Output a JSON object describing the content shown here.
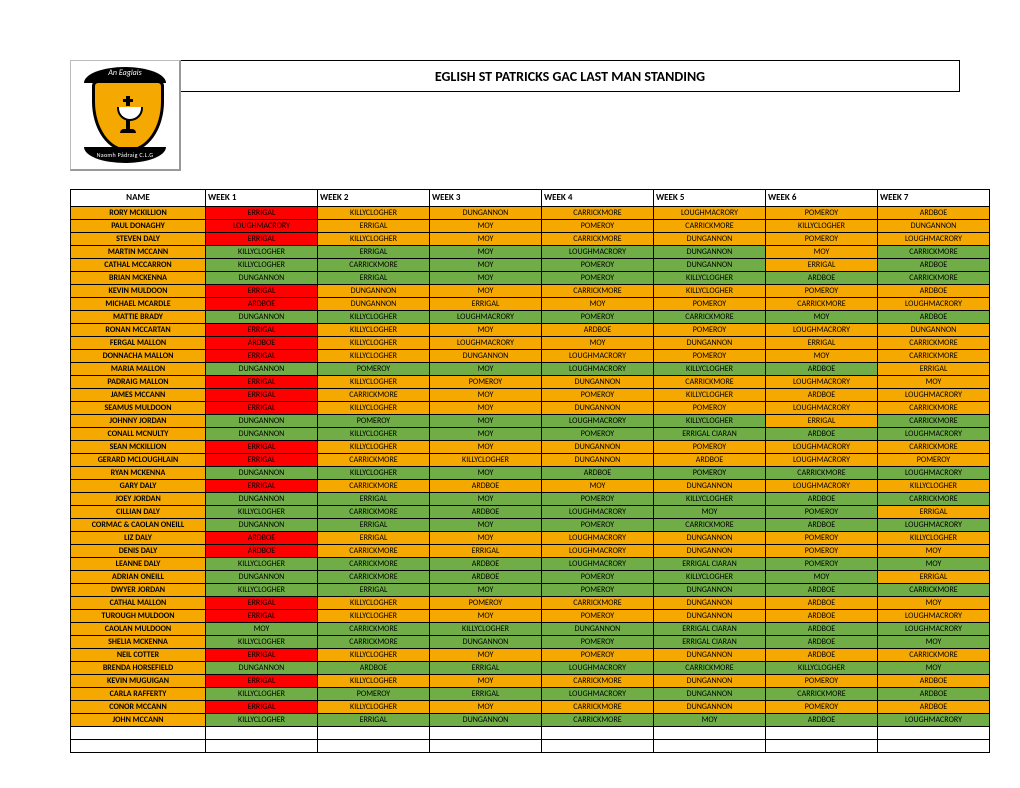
{
  "title": "EGLISH ST PATRICKS GAC LAST MAN STANDING",
  "crest_top": "An Eaglais",
  "crest_bottom": "Naomh Pádraig C.L.G",
  "columns": [
    "NAME",
    "WEEK 1",
    "WEEK 2",
    "WEEK 3",
    "WEEK 4",
    "WEEK 5",
    "WEEK 6",
    "WEEK 7"
  ],
  "colors": {
    "green": "#70ad47",
    "orange": "#f5a800",
    "red": "#ff0000"
  },
  "rows": [
    {
      "name": "RORY MCKILLION",
      "cells": [
        [
          "ERRIGAL",
          "r"
        ],
        [
          "KILLYCLOGHER",
          "o"
        ],
        [
          "DUNGANNON",
          "o"
        ],
        [
          "CARRICKMORE",
          "o"
        ],
        [
          "LOUGHMACRORY",
          "o"
        ],
        [
          "POMEROY",
          "o"
        ],
        [
          "ARDBOE",
          "o"
        ]
      ]
    },
    {
      "name": "PAUL DONAGHY",
      "cells": [
        [
          "LOUGHMACRORY",
          "r"
        ],
        [
          "ERRIGAL",
          "o"
        ],
        [
          "MOY",
          "o"
        ],
        [
          "POMEROY",
          "o"
        ],
        [
          "CARRICKMORE",
          "o"
        ],
        [
          "KILLYCLOGHER",
          "o"
        ],
        [
          "DUNGANNON",
          "o"
        ]
      ]
    },
    {
      "name": "STEVEN DALY",
      "cells": [
        [
          "ERRIGAL",
          "r"
        ],
        [
          "KILLYCLOGHER",
          "o"
        ],
        [
          "MOY",
          "o"
        ],
        [
          "CARRICKMORE",
          "o"
        ],
        [
          "DUNGANNON",
          "o"
        ],
        [
          "POMEROY",
          "o"
        ],
        [
          "LOUGHMACRORY",
          "o"
        ]
      ]
    },
    {
      "name": "MARTIN MCCANN",
      "cells": [
        [
          "KILLYCLOGHER",
          "g"
        ],
        [
          "ERRIGAL",
          "g"
        ],
        [
          "MOY",
          "g"
        ],
        [
          "LOUGHMACRORY",
          "g"
        ],
        [
          "DUNGANNON",
          "g"
        ],
        [
          "MOY",
          "o"
        ],
        [
          "CARRICKMORE",
          "g"
        ]
      ]
    },
    {
      "name": "CATHAL MCCARRON",
      "cells": [
        [
          "KILLYCLOGHER",
          "g"
        ],
        [
          "CARRICKMORE",
          "g"
        ],
        [
          "MOY",
          "g"
        ],
        [
          "POMEROY",
          "g"
        ],
        [
          "DUNGANNON",
          "g"
        ],
        [
          "ERRIGAL",
          "o"
        ],
        [
          "ARDBOE",
          "g"
        ]
      ]
    },
    {
      "name": "BRIAN MCKENNA",
      "cells": [
        [
          "DUNGANNON",
          "g"
        ],
        [
          "ERRIGAL",
          "g"
        ],
        [
          "MOY",
          "g"
        ],
        [
          "POMEROY",
          "g"
        ],
        [
          "KILLYCLOGHER",
          "g"
        ],
        [
          "ARDBOE",
          "g"
        ],
        [
          "CARRICKMORE",
          "g"
        ]
      ]
    },
    {
      "name": "KEVIN MULDOON",
      "cells": [
        [
          "ERRIGAL",
          "r"
        ],
        [
          "DUNGANNON",
          "o"
        ],
        [
          "MOY",
          "o"
        ],
        [
          "CARRICKMORE",
          "o"
        ],
        [
          "KILLYCLOGHER",
          "o"
        ],
        [
          "POMEROY",
          "o"
        ],
        [
          "ARDBOE",
          "o"
        ]
      ]
    },
    {
      "name": "MICHAEL MCARDLE",
      "cells": [
        [
          "ARDBOE",
          "r"
        ],
        [
          "DUNGANNON",
          "o"
        ],
        [
          "ERRIGAL",
          "o"
        ],
        [
          "MOY",
          "o"
        ],
        [
          "POMEROY",
          "o"
        ],
        [
          "CARRICKMORE",
          "o"
        ],
        [
          "LOUGHMACRORY",
          "o"
        ]
      ]
    },
    {
      "name": "MATTIE BRADY",
      "cells": [
        [
          "DUNGANNON",
          "g"
        ],
        [
          "KILLYCLOGHER",
          "g"
        ],
        [
          "LOUGHMACRORY",
          "g"
        ],
        [
          "POMEROY",
          "g"
        ],
        [
          "CARRICKMORE",
          "g"
        ],
        [
          "MOY",
          "g"
        ],
        [
          "ARDBOE",
          "g"
        ]
      ]
    },
    {
      "name": "RONAN MCCARTAN",
      "cells": [
        [
          "ERRIGAL",
          "r"
        ],
        [
          "KILLYCLOGHER",
          "o"
        ],
        [
          "MOY",
          "o"
        ],
        [
          "ARDBOE",
          "o"
        ],
        [
          "POMEROY",
          "o"
        ],
        [
          "LOUGHMACRORY",
          "o"
        ],
        [
          "DUNGANNON",
          "o"
        ]
      ]
    },
    {
      "name": "FERGAL MALLON",
      "cells": [
        [
          "ARDBOE",
          "r"
        ],
        [
          "KILLYCLOGHER",
          "o"
        ],
        [
          "LOUGHMACRORY",
          "o"
        ],
        [
          "MOY",
          "o"
        ],
        [
          "DUNGANNON",
          "o"
        ],
        [
          "ERRIGAL",
          "o"
        ],
        [
          "CARRICKMORE",
          "o"
        ]
      ]
    },
    {
      "name": "DONNACHA MALLON",
      "cells": [
        [
          "ERRIGAL",
          "r"
        ],
        [
          "KILLYCLOGHER",
          "o"
        ],
        [
          "DUNGANNON",
          "o"
        ],
        [
          "LOUGHMACRORY",
          "o"
        ],
        [
          "POMEROY",
          "o"
        ],
        [
          "MOY",
          "o"
        ],
        [
          "CARRICKMORE",
          "o"
        ]
      ]
    },
    {
      "name": "MARIA MALLON",
      "cells": [
        [
          "DUNGANNON",
          "g"
        ],
        [
          "POMEROY",
          "g"
        ],
        [
          "MOY",
          "g"
        ],
        [
          "LOUGHMACRORY",
          "g"
        ],
        [
          "KILLYCLOGHER",
          "g"
        ],
        [
          "ARDBOE",
          "g"
        ],
        [
          "ERRIGAL",
          "o"
        ]
      ]
    },
    {
      "name": "PADRAIG MALLON",
      "cells": [
        [
          "ERRIGAL",
          "r"
        ],
        [
          "KILLYCLOGHER",
          "o"
        ],
        [
          "POMEROY",
          "o"
        ],
        [
          "DUNGANNON",
          "o"
        ],
        [
          "CARRICKMORE",
          "o"
        ],
        [
          "LOUGHMACRORY",
          "o"
        ],
        [
          "MOY",
          "o"
        ]
      ]
    },
    {
      "name": "JAMES MCCANN",
      "cells": [
        [
          "ERRIGAL",
          "r"
        ],
        [
          "CARRICKMORE",
          "o"
        ],
        [
          "MOY",
          "o"
        ],
        [
          "POMEROY",
          "o"
        ],
        [
          "KILLYCLOGHER",
          "o"
        ],
        [
          "ARDBOE",
          "o"
        ],
        [
          "LOUGHMACRORY",
          "o"
        ]
      ]
    },
    {
      "name": "SEAMUS MULDOON",
      "cells": [
        [
          "ERRIGAL",
          "r"
        ],
        [
          "KILLYCLOGHER",
          "o"
        ],
        [
          "MOY",
          "o"
        ],
        [
          "DUNGANNON",
          "o"
        ],
        [
          "POMEROY",
          "o"
        ],
        [
          "LOUGHMACRORY",
          "o"
        ],
        [
          "CARRICKMORE",
          "o"
        ]
      ]
    },
    {
      "name": "JOHNNY JORDAN",
      "cells": [
        [
          "DUNGANNON",
          "g"
        ],
        [
          "POMEROY",
          "g"
        ],
        [
          "MOY",
          "g"
        ],
        [
          "LOUGHMACRORY",
          "g"
        ],
        [
          "KILLYCLOGHER",
          "g"
        ],
        [
          "ERRIGAL",
          "o"
        ],
        [
          "CARRICKMORE",
          "g"
        ]
      ]
    },
    {
      "name": "CONALL MCNULTY",
      "cells": [
        [
          "DUNGANNON",
          "g"
        ],
        [
          "KILLYCLOGHER",
          "g"
        ],
        [
          "MOY",
          "g"
        ],
        [
          "POMEROY",
          "g"
        ],
        [
          "ERRIGAL CIARAN",
          "g"
        ],
        [
          "ARDBOE",
          "g"
        ],
        [
          "LOUGHMACRORY",
          "g"
        ]
      ]
    },
    {
      "name": "SEAN MCKILLION",
      "cells": [
        [
          "ERRIGAL",
          "r"
        ],
        [
          "KILLYCLOGHER",
          "o"
        ],
        [
          "MOY",
          "o"
        ],
        [
          "DUNGANNON",
          "o"
        ],
        [
          "POMEROY",
          "o"
        ],
        [
          "LOUGHMACRORY",
          "o"
        ],
        [
          "CARRICKMORE",
          "o"
        ]
      ]
    },
    {
      "name": "GERARD MCLOUGHLAIN",
      "cells": [
        [
          "ERRIGAL",
          "r"
        ],
        [
          "CARRICKMORE",
          "o"
        ],
        [
          "KILLYCLOGHER",
          "o"
        ],
        [
          "DUNGANNON",
          "o"
        ],
        [
          "ARDBOE",
          "o"
        ],
        [
          "LOUGHMACRORY",
          "o"
        ],
        [
          "POMEROY",
          "o"
        ]
      ]
    },
    {
      "name": "RYAN MCKENNA",
      "cells": [
        [
          "DUNGANNON",
          "g"
        ],
        [
          "KILLYCLOGHER",
          "g"
        ],
        [
          "MOY",
          "g"
        ],
        [
          "ARDBOE",
          "g"
        ],
        [
          "POMEROY",
          "g"
        ],
        [
          "CARRICKMORE",
          "g"
        ],
        [
          "LOUGHMACRORY",
          "g"
        ]
      ]
    },
    {
      "name": "GARY DALY",
      "cells": [
        [
          "ERRIGAL",
          "r"
        ],
        [
          "CARRICKMORE",
          "o"
        ],
        [
          "ARDBOE",
          "o"
        ],
        [
          "MOY",
          "o"
        ],
        [
          "DUNGANNON",
          "o"
        ],
        [
          "LOUGHMACRORY",
          "o"
        ],
        [
          "KILLYCLOGHER",
          "o"
        ]
      ]
    },
    {
      "name": "JOEY JORDAN",
      "cells": [
        [
          "DUNGANNON",
          "g"
        ],
        [
          "ERRIGAL",
          "g"
        ],
        [
          "MOY",
          "g"
        ],
        [
          "POMEROY",
          "g"
        ],
        [
          "KILLYCLOGHER",
          "g"
        ],
        [
          "ARDBOE",
          "g"
        ],
        [
          "CARRICKMORE",
          "g"
        ]
      ]
    },
    {
      "name": "CILLIAN DALY",
      "cells": [
        [
          "KILLYCLOGHER",
          "g"
        ],
        [
          "CARRICKMORE",
          "g"
        ],
        [
          "ARDBOE",
          "g"
        ],
        [
          "LOUGHMACRORY",
          "g"
        ],
        [
          "MOY",
          "g"
        ],
        [
          "POMEROY",
          "g"
        ],
        [
          "ERRIGAL",
          "o"
        ]
      ]
    },
    {
      "name": "CORMAC & CAOLAN ONEILL",
      "cells": [
        [
          "DUNGANNON",
          "g"
        ],
        [
          "ERRIGAL",
          "g"
        ],
        [
          "MOY",
          "g"
        ],
        [
          "POMEROY",
          "g"
        ],
        [
          "CARRICKMORE",
          "g"
        ],
        [
          "ARDBOE",
          "g"
        ],
        [
          "LOUGHMACRORY",
          "g"
        ]
      ]
    },
    {
      "name": "LIZ DALY",
      "cells": [
        [
          "ARDBOE",
          "r"
        ],
        [
          "ERRIGAL",
          "o"
        ],
        [
          "MOY",
          "o"
        ],
        [
          "LOUGHMACRORY",
          "o"
        ],
        [
          "DUNGANNON",
          "o"
        ],
        [
          "POMEROY",
          "o"
        ],
        [
          "KILLYCLOGHER",
          "o"
        ]
      ]
    },
    {
      "name": "DENIS DALY",
      "cells": [
        [
          "ARDBOE",
          "r"
        ],
        [
          "CARRICKMORE",
          "o"
        ],
        [
          "ERRIGAL",
          "o"
        ],
        [
          "LOUGHMACRORY",
          "o"
        ],
        [
          "DUNGANNON",
          "o"
        ],
        [
          "POMEROY",
          "o"
        ],
        [
          "MOY",
          "o"
        ]
      ]
    },
    {
      "name": "LEANNE DALY",
      "cells": [
        [
          "KILLYCLOGHER",
          "g"
        ],
        [
          "CARRICKMORE",
          "g"
        ],
        [
          "ARDBOE",
          "g"
        ],
        [
          "LOUGHMACRORY",
          "g"
        ],
        [
          "ERRIGAL CIARAN",
          "g"
        ],
        [
          "POMEROY",
          "g"
        ],
        [
          "MOY",
          "g"
        ]
      ]
    },
    {
      "name": "ADRIAN ONEILL",
      "cells": [
        [
          "DUNGANNON",
          "g"
        ],
        [
          "CARRICKMORE",
          "g"
        ],
        [
          "ARDBOE",
          "g"
        ],
        [
          "POMEROY",
          "g"
        ],
        [
          "KILLYCLOGHER",
          "g"
        ],
        [
          "MOY",
          "g"
        ],
        [
          "ERRIGAL",
          "o"
        ]
      ]
    },
    {
      "name": "DWYER JORDAN",
      "cells": [
        [
          "KILLYCLOGHER",
          "g"
        ],
        [
          "ERRIGAL",
          "g"
        ],
        [
          "MOY",
          "g"
        ],
        [
          "POMEROY",
          "g"
        ],
        [
          "DUNGANNON",
          "g"
        ],
        [
          "ARDBOE",
          "g"
        ],
        [
          "CARRICKMORE",
          "g"
        ]
      ]
    },
    {
      "name": "CATHAL MALLON",
      "cells": [
        [
          "ERRIGAL",
          "r"
        ],
        [
          "KILLYCLOGHER",
          "o"
        ],
        [
          "POMEROY",
          "o"
        ],
        [
          "CARRICKMORE",
          "o"
        ],
        [
          "DUNGANNON",
          "o"
        ],
        [
          "ARDBOE",
          "o"
        ],
        [
          "MOY",
          "o"
        ]
      ]
    },
    {
      "name": "TUROUGH MULDOON",
      "cells": [
        [
          "ERRIGAL",
          "r"
        ],
        [
          "KILLYCLOGHER",
          "o"
        ],
        [
          "MOY",
          "o"
        ],
        [
          "POMEROY",
          "o"
        ],
        [
          "DUNGANNON",
          "o"
        ],
        [
          "ARDBOE",
          "o"
        ],
        [
          "LOUGHMACRORY",
          "o"
        ]
      ]
    },
    {
      "name": "CAOLAN MULDOON",
      "cells": [
        [
          "MOY",
          "g"
        ],
        [
          "CARRICKMORE",
          "g"
        ],
        [
          "KILLYCLOGHER",
          "g"
        ],
        [
          "DUNGANNON",
          "g"
        ],
        [
          "ERRIGAL CIARAN",
          "g"
        ],
        [
          "ARDBOE",
          "g"
        ],
        [
          "LOUGHMACRORY",
          "g"
        ]
      ]
    },
    {
      "name": "SHELIA MCKENNA",
      "cells": [
        [
          "KILLYCLOGHER",
          "g"
        ],
        [
          "CARRICKMORE",
          "g"
        ],
        [
          "DUNGANNON",
          "g"
        ],
        [
          "POMEROY",
          "g"
        ],
        [
          "ERRIGAL CIARAN",
          "g"
        ],
        [
          "ARDBOE",
          "g"
        ],
        [
          "MOY",
          "g"
        ]
      ]
    },
    {
      "name": "NEIL COTTER",
      "cells": [
        [
          "ERRIGAL",
          "r"
        ],
        [
          "KILLYCLOGHER",
          "o"
        ],
        [
          "MOY",
          "o"
        ],
        [
          "POMEROY",
          "o"
        ],
        [
          "DUNGANNON",
          "o"
        ],
        [
          "ARDBOE",
          "o"
        ],
        [
          "CARRICKMORE",
          "o"
        ]
      ]
    },
    {
      "name": "BRENDA HORSEFIELD",
      "cells": [
        [
          "DUNGANNON",
          "g"
        ],
        [
          "ARDBOE",
          "g"
        ],
        [
          "ERRIGAL",
          "g"
        ],
        [
          "LOUGHMACRORY",
          "g"
        ],
        [
          "CARRICKMORE",
          "g"
        ],
        [
          "KILLYCLOGHER",
          "g"
        ],
        [
          "MOY",
          "g"
        ]
      ]
    },
    {
      "name": "KEVIN MUGUIGAN",
      "cells": [
        [
          "ERRIGAL",
          "r"
        ],
        [
          "KILLYCLOGHER",
          "o"
        ],
        [
          "MOY",
          "o"
        ],
        [
          "CARRICKMORE",
          "o"
        ],
        [
          "DUNGANNON",
          "o"
        ],
        [
          "POMEROY",
          "o"
        ],
        [
          "ARDBOE",
          "o"
        ]
      ]
    },
    {
      "name": "CARLA RAFFERTY",
      "cells": [
        [
          "KILLYCLOGHER",
          "g"
        ],
        [
          "POMEROY",
          "g"
        ],
        [
          "ERRIGAL",
          "g"
        ],
        [
          "LOUGHMACRORY",
          "g"
        ],
        [
          "DUNGANNON",
          "g"
        ],
        [
          "CARRICKMORE",
          "g"
        ],
        [
          "ARDBOE",
          "g"
        ]
      ]
    },
    {
      "name": "CONOR MCCANN",
      "cells": [
        [
          "ERRIGAL",
          "r"
        ],
        [
          "KILLYCLOGHER",
          "o"
        ],
        [
          "MOY",
          "o"
        ],
        [
          "CARRICKMORE",
          "o"
        ],
        [
          "DUNGANNON",
          "o"
        ],
        [
          "POMEROY",
          "o"
        ],
        [
          "ARDBOE",
          "o"
        ]
      ]
    },
    {
      "name": "JOHN MCCANN",
      "cells": [
        [
          "KILLYCLOGHER",
          "g"
        ],
        [
          "ERRIGAL",
          "g"
        ],
        [
          "DUNGANNON",
          "g"
        ],
        [
          "CARRICKMORE",
          "g"
        ],
        [
          "MOY",
          "g"
        ],
        [
          "ARDBOE",
          "g"
        ],
        [
          "LOUGHMACRORY",
          "g"
        ]
      ]
    }
  ],
  "empty_rows": 2
}
